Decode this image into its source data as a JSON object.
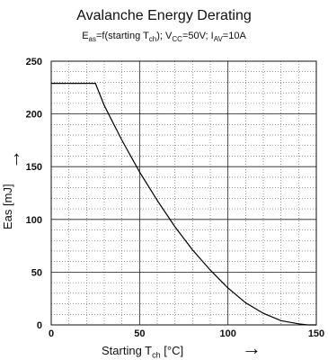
{
  "chart_data": {
    "type": "line",
    "title": "Avalanche Energy Derating",
    "subtitle": {
      "parts": [
        "E",
        "as",
        "=f(starting T",
        "ch",
        "); V",
        "CC",
        "=50V; I",
        "AV",
        "=10A"
      ]
    },
    "xlabel": {
      "main": "Starting T",
      "sub": "ch",
      "unit": " [°C]"
    },
    "ylabel": "Eas [mJ]",
    "xlim": [
      0,
      150
    ],
    "ylim": [
      0,
      250
    ],
    "x_ticks": [
      0,
      50,
      100,
      150
    ],
    "y_ticks": [
      0,
      50,
      100,
      150,
      200,
      250
    ],
    "grid": true,
    "series": [
      {
        "x": [
          0,
          25,
          30,
          40,
          50,
          60,
          70,
          80,
          90,
          100,
          110,
          120,
          130,
          140,
          145,
          150
        ],
        "y": [
          229,
          229,
          208,
          175,
          145,
          118,
          93,
          71,
          52,
          35,
          21,
          11,
          4,
          1,
          0,
          0
        ]
      }
    ]
  }
}
